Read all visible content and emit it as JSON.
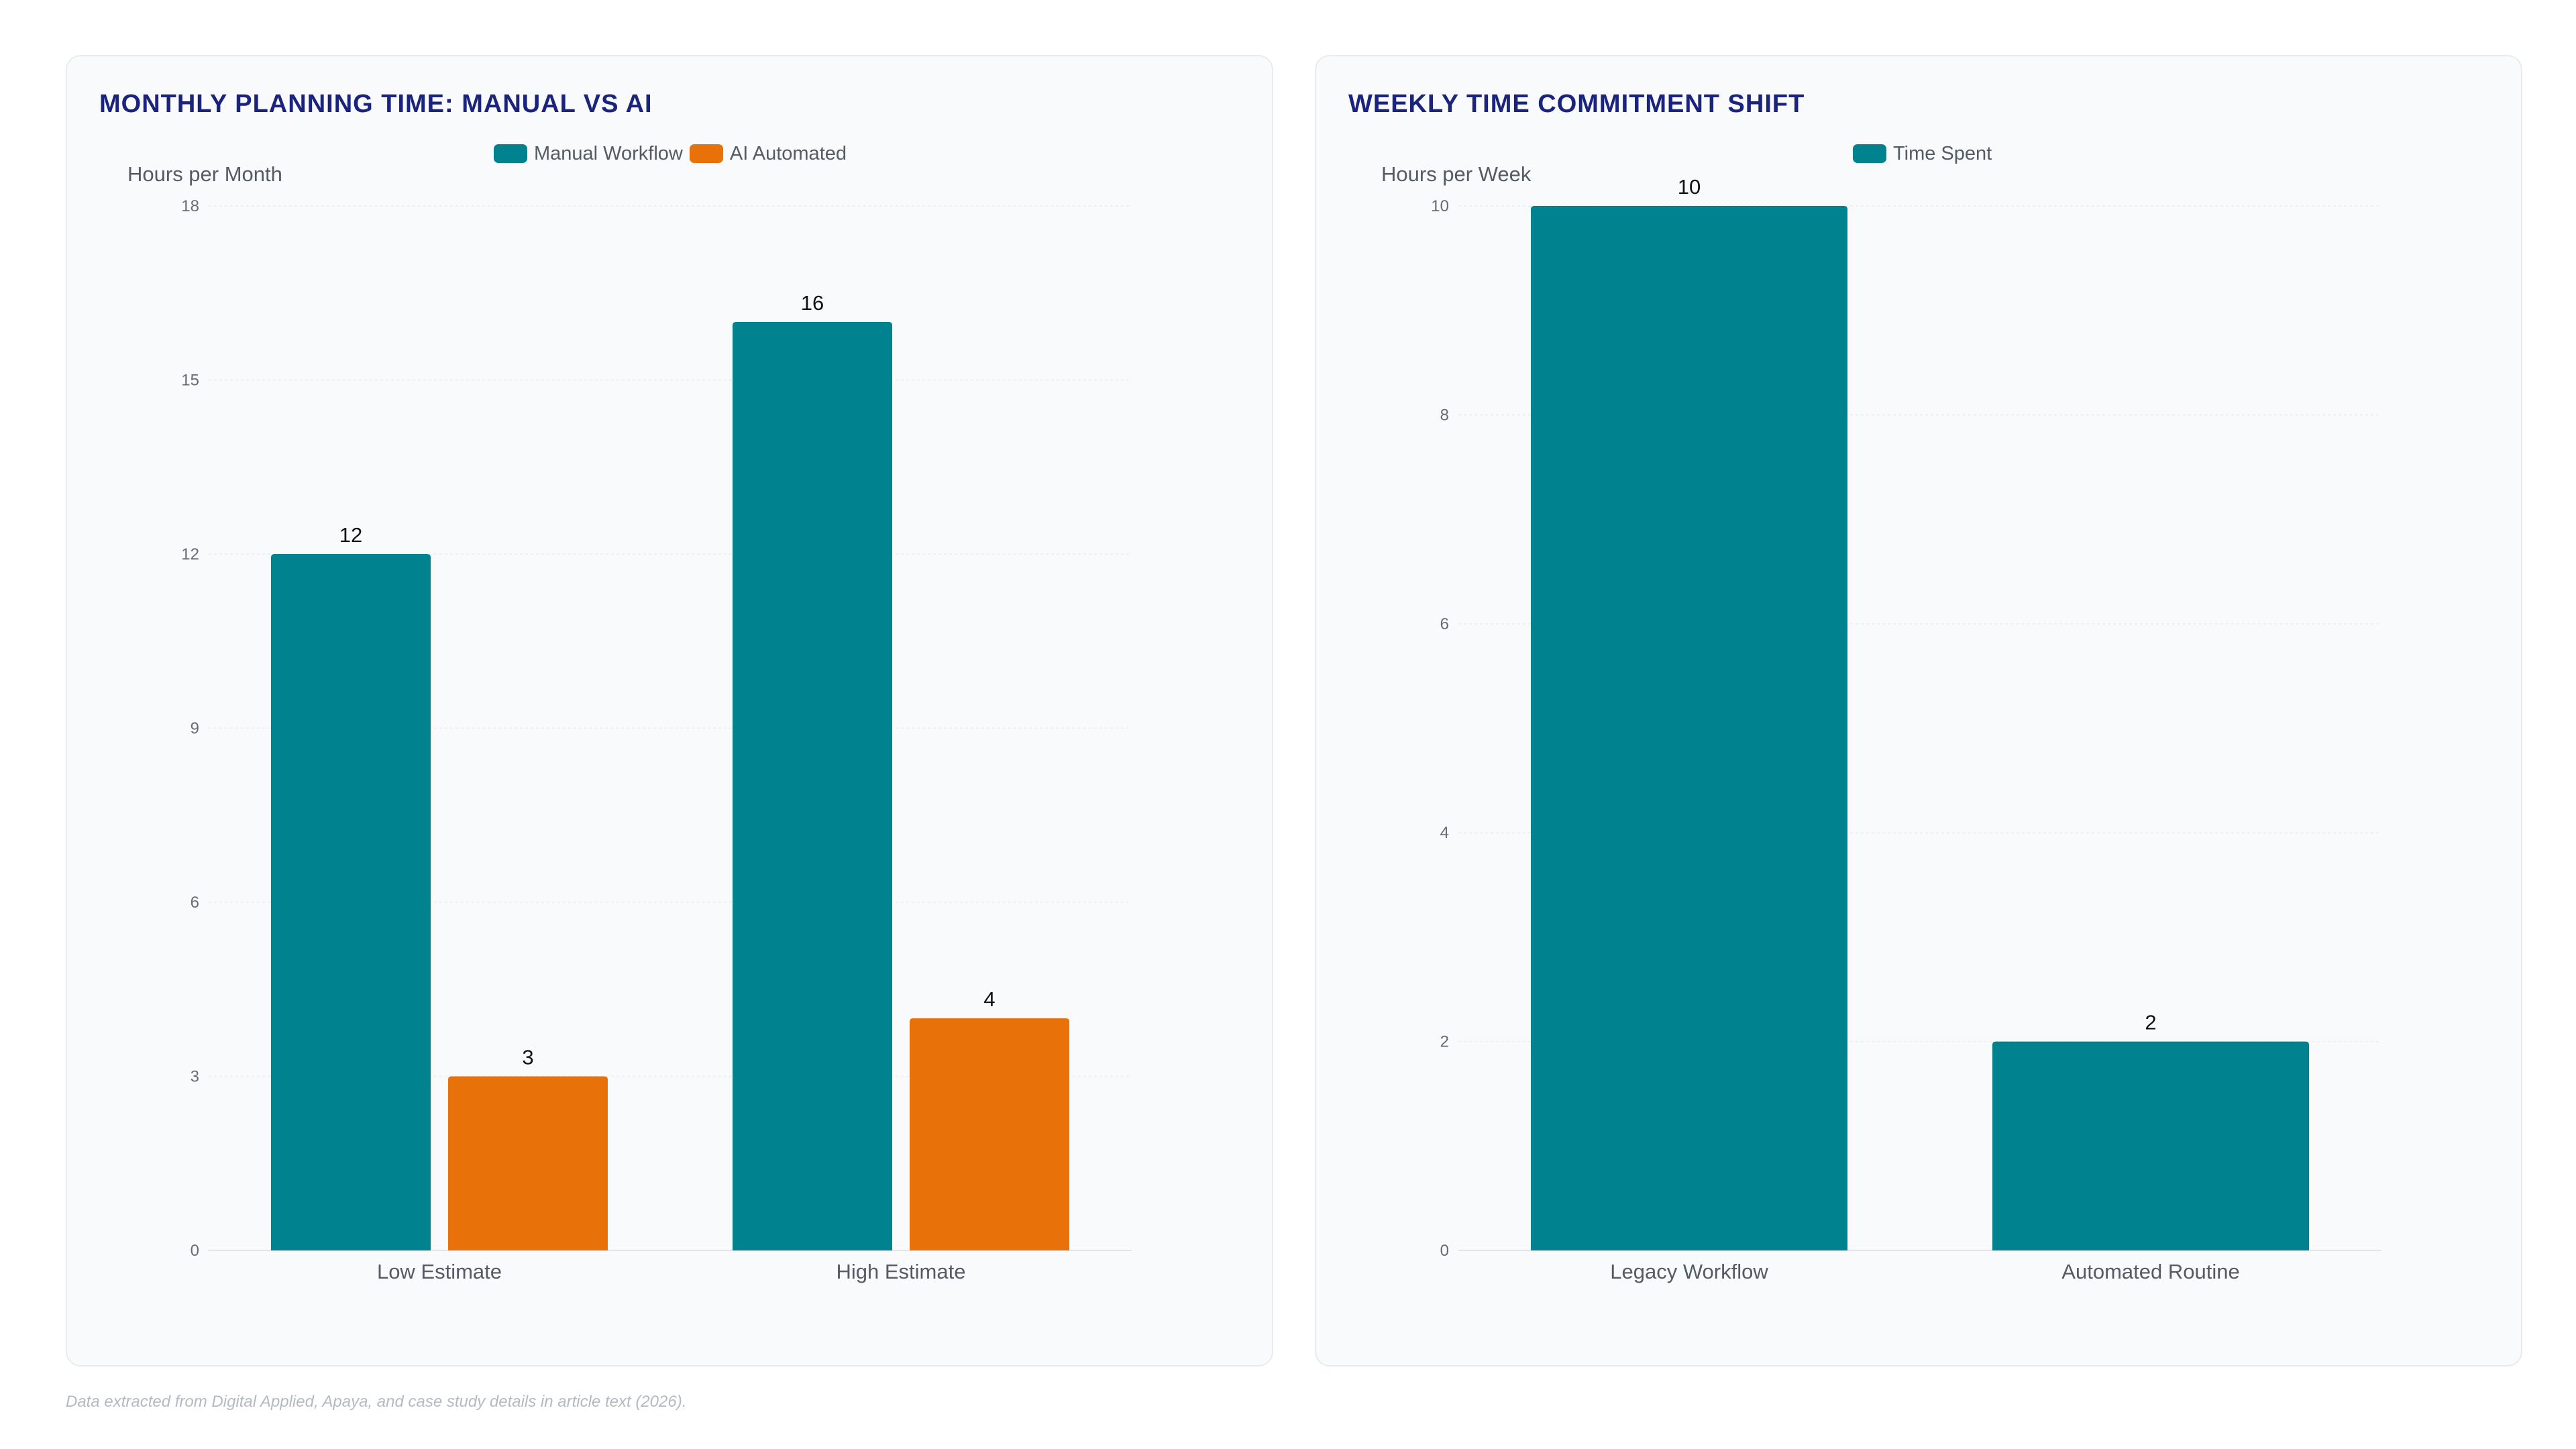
{
  "charts": {
    "left": {
      "title": "MONTHLY PLANNING TIME: MANUAL VS AI",
      "legend": [
        {
          "label": "Manual Workflow",
          "color": "#00838f"
        },
        {
          "label": "AI Automated",
          "color": "#e8710a"
        }
      ]
    },
    "right": {
      "title": "WEEKLY TIME COMMITMENT SHIFT",
      "legend": [
        {
          "label": "Time Spent",
          "color": "#00838f"
        }
      ]
    }
  },
  "chart_data": [
    {
      "type": "bar",
      "title": "MONTHLY PLANNING TIME: MANUAL VS AI",
      "ylabel": "Hours per Month",
      "xlabel": "",
      "categories": [
        "Low Estimate",
        "High Estimate"
      ],
      "series": [
        {
          "name": "Manual Workflow",
          "values": [
            12,
            16
          ],
          "color": "#00838f"
        },
        {
          "name": "AI Automated",
          "values": [
            3,
            4
          ],
          "color": "#e8710a"
        }
      ],
      "ylim": [
        0,
        18
      ],
      "yticks": [
        0,
        3,
        6,
        9,
        12,
        15,
        18
      ],
      "grid": true,
      "legend_position": "top-center",
      "data_labels": true
    },
    {
      "type": "bar",
      "title": "WEEKLY TIME COMMITMENT SHIFT",
      "ylabel": "Hours per Week",
      "xlabel": "",
      "categories": [
        "Legacy Workflow",
        "Automated Routine"
      ],
      "series": [
        {
          "name": "Time Spent",
          "values": [
            10,
            2
          ],
          "color": "#00838f"
        }
      ],
      "ylim": [
        0,
        10
      ],
      "yticks": [
        0,
        2,
        4,
        6,
        8,
        10
      ],
      "grid": true,
      "legend_position": "top-center",
      "data_labels": true
    }
  ],
  "footnote": "Data extracted from Digital Applied, Apaya, and case study details in article text (2026)."
}
